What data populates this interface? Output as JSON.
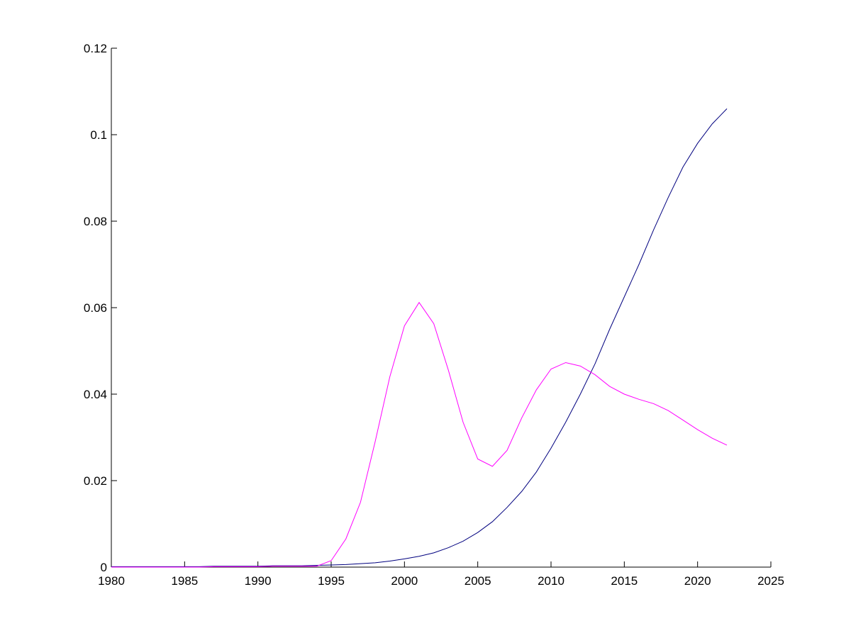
{
  "chart_data": {
    "type": "line",
    "x": [
      1980,
      1981,
      1982,
      1983,
      1984,
      1985,
      1986,
      1987,
      1988,
      1989,
      1990,
      1991,
      1992,
      1993,
      1994,
      1995,
      1996,
      1997,
      1998,
      1999,
      2000,
      2001,
      2002,
      2003,
      2004,
      2005,
      2006,
      2007,
      2008,
      2009,
      2010,
      2011,
      2012,
      2013,
      2014,
      2015,
      2016,
      2017,
      2018,
      2019,
      2020,
      2021,
      2022
    ],
    "series": [
      {
        "color": "#00007f",
        "values": [
          0.0001,
          0.0001,
          0.0001,
          0.0001,
          0.0001,
          0.0001,
          0.0001,
          0.0002,
          0.0002,
          0.0002,
          0.0002,
          0.0003,
          0.0003,
          0.0003,
          0.0004,
          0.0005,
          0.0006,
          0.0008,
          0.001,
          0.0014,
          0.0019,
          0.0025,
          0.0033,
          0.0045,
          0.006,
          0.008,
          0.0105,
          0.0138,
          0.0175,
          0.022,
          0.0275,
          0.0335,
          0.04,
          0.047,
          0.055,
          0.0625,
          0.07,
          0.078,
          0.0855,
          0.0925,
          0.098,
          0.1025,
          0.106
        ]
      },
      {
        "color": "#ff00ff",
        "values": [
          0,
          0,
          0,
          0,
          0,
          0,
          0,
          0.0001,
          0.0001,
          0.0001,
          0.0001,
          0.0002,
          0.0002,
          0.0002,
          0.0002,
          0.0015,
          0.0065,
          0.015,
          0.029,
          0.044,
          0.0558,
          0.0612,
          0.0563,
          0.0455,
          0.0335,
          0.025,
          0.0233,
          0.027,
          0.0345,
          0.041,
          0.0458,
          0.0473,
          0.0465,
          0.0445,
          0.0418,
          0.04,
          0.0388,
          0.0378,
          0.0362,
          0.034,
          0.0318,
          0.0298,
          0.0282
        ]
      }
    ],
    "xlim": [
      1980,
      2025
    ],
    "xticks": [
      1980,
      1985,
      1990,
      1995,
      2000,
      2005,
      2010,
      2015,
      2020,
      2025
    ],
    "ylim": [
      0,
      0.12
    ],
    "yticks": [
      0,
      0.02,
      0.04,
      0.06,
      0.08,
      0.1,
      0.12
    ],
    "grid": false
  }
}
